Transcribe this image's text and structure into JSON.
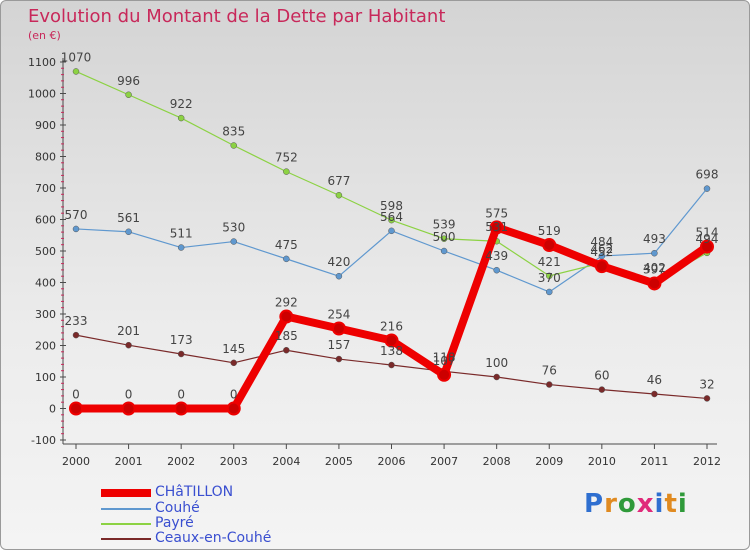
{
  "header": {
    "title": "Evolution du Montant de la Dette par Habitant",
    "unit": "(en €)"
  },
  "logo": {
    "text": "Proxiti",
    "letter_colors": [
      "#2f6fd0",
      "#e08a20",
      "#2f9a3a",
      "#e02a7a",
      "#2f6fd0",
      "#e08a20",
      "#2f9a3a"
    ]
  },
  "colors": {
    "background_top": "#d4d4d4",
    "title": "#c8285a",
    "axis": "#4a4a4a",
    "tick_marks": "#c8285a",
    "legend_text": "#3a4fd0"
  },
  "chart_data": {
    "type": "line",
    "title": "Evolution du Montant de la Dette par Habitant",
    "ylabel": "(en €)",
    "xlabel": "",
    "x": [
      "2000",
      "2001",
      "2002",
      "2003",
      "2004",
      "2005",
      "2006",
      "2007",
      "2008",
      "2009",
      "2010",
      "2011",
      "2012"
    ],
    "ylim": [
      -100,
      1100
    ],
    "yticks": [
      -100,
      0,
      100,
      200,
      300,
      400,
      500,
      600,
      700,
      800,
      900,
      1000,
      1100
    ],
    "grid": false,
    "legend_position": "bottom-left",
    "series": [
      {
        "name": "CHâTILLON",
        "color": "#ee0000",
        "emphasis": true,
        "values": [
          0,
          0,
          0,
          0,
          292,
          254,
          216,
          107,
          575,
          519,
          452,
          397,
          514
        ],
        "labels": [
          "0",
          "0",
          "0",
          "0",
          "292",
          "254",
          "216",
          "107",
          "575",
          "519",
          "452",
          "397",
          "514"
        ]
      },
      {
        "name": "Couhé",
        "color": "#5f98cf",
        "emphasis": false,
        "values": [
          570,
          561,
          511,
          530,
          475,
          420,
          564,
          500,
          439,
          370,
          484,
          493,
          698
        ],
        "labels": [
          "570",
          "561",
          "511",
          "530",
          "475",
          "420",
          "564",
          "500",
          "439",
          "370",
          "484",
          "493",
          "698"
        ]
      },
      {
        "name": "Payré",
        "color": "#8cd243",
        "emphasis": false,
        "values": [
          1070,
          996,
          922,
          835,
          752,
          677,
          598,
          539,
          531,
          421,
          462,
          402,
          494
        ],
        "labels": [
          "1070",
          "996",
          "922",
          "835",
          "752",
          "677",
          "598",
          "539",
          "531",
          "421",
          "462",
          "402",
          "494"
        ]
      },
      {
        "name": "Ceaux-en-Couhé",
        "color": "#7a2a2a",
        "emphasis": false,
        "values": [
          233,
          201,
          173,
          145,
          185,
          157,
          138,
          118,
          100,
          76,
          60,
          46,
          32
        ],
        "labels": [
          "233",
          "201",
          "173",
          "145",
          "185",
          "157",
          "138",
          "118",
          "100",
          "76",
          "60",
          "46",
          "32"
        ]
      }
    ]
  }
}
